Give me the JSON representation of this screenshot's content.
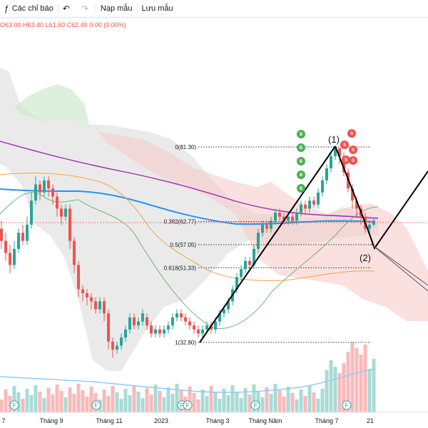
{
  "toolbar": {
    "indicators_label": "Các chỉ báo",
    "load_label": "Nạp mẫu",
    "save_label": "Lưu mẫu",
    "undo_icon": "undo-icon",
    "redo_icon": "redo-icon"
  },
  "ohlc": {
    "o": "O63.00",
    "h": "H63.40",
    "l": "L61.60",
    "c": "C62.40",
    "chg": "0.00 (0.00%)"
  },
  "colors": {
    "up": "#26a69a",
    "down": "#ef5350",
    "ma_purple": "#9c27b0",
    "ma_blue": "#2196f3",
    "ma_orange": "#f4a340",
    "ma_green": "#66bb6a",
    "cloud_gray": "#e3e3e3",
    "cloud_pink": "#f8c7c7",
    "cloud_green": "#cfe8cf"
  },
  "chart_data": {
    "type": "candlestick",
    "x_labels": [
      "7",
      "Tháng 9",
      "Tháng 11",
      "2023",
      "Tháng 3",
      "Tháng Năm",
      "Tháng 7",
      "21"
    ],
    "fib_levels": [
      {
        "ratio": "0",
        "value": 81.3,
        "label": "0(81.30)"
      },
      {
        "ratio": "0.382",
        "value": 62.77,
        "label": "0.382(62.77)"
      },
      {
        "ratio": "0.5",
        "value": 57.05,
        "label": "0.5(57.05)"
      },
      {
        "ratio": "0.618",
        "value": 51.33,
        "label": "0.618(51.33)"
      },
      {
        "ratio": "1",
        "value": 32.8,
        "label": "1(32.80)"
      }
    ],
    "wave_labels": [
      "(1)",
      "(2)"
    ],
    "buy_signal": "B",
    "sell_signal": "S",
    "event_marker": "F",
    "last_price": 62.4
  }
}
